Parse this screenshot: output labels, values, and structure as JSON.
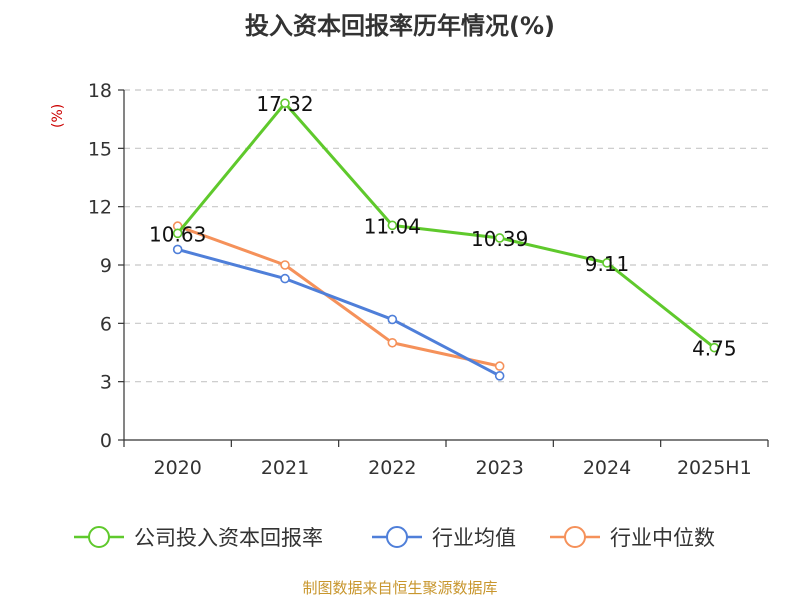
{
  "chart_data": {
    "type": "line",
    "title": "投入资本回报率历年情况(%)",
    "ylabel": "(%)",
    "categories": [
      "2020",
      "2021",
      "2022",
      "2023",
      "2024",
      "2025H1"
    ],
    "ylim": [
      0,
      18
    ],
    "yticks": [
      0,
      3,
      6,
      9,
      12,
      15,
      18
    ],
    "grid": true,
    "legend_position": "bottom",
    "series": [
      {
        "name": "公司投入资本回报率",
        "color": "#5fc92c",
        "values": [
          10.63,
          17.32,
          11.04,
          10.39,
          9.11,
          4.75
        ],
        "labels": true
      },
      {
        "name": "行业均值",
        "color": "#4f7fd9",
        "values": [
          9.8,
          8.3,
          6.2,
          3.3,
          null,
          null
        ],
        "labels": false
      },
      {
        "name": "行业中位数",
        "color": "#f5915a",
        "values": [
          11.0,
          9.0,
          5.0,
          3.8,
          null,
          null
        ],
        "labels": false
      }
    ]
  },
  "source": "制图数据来自恒生聚源数据库"
}
